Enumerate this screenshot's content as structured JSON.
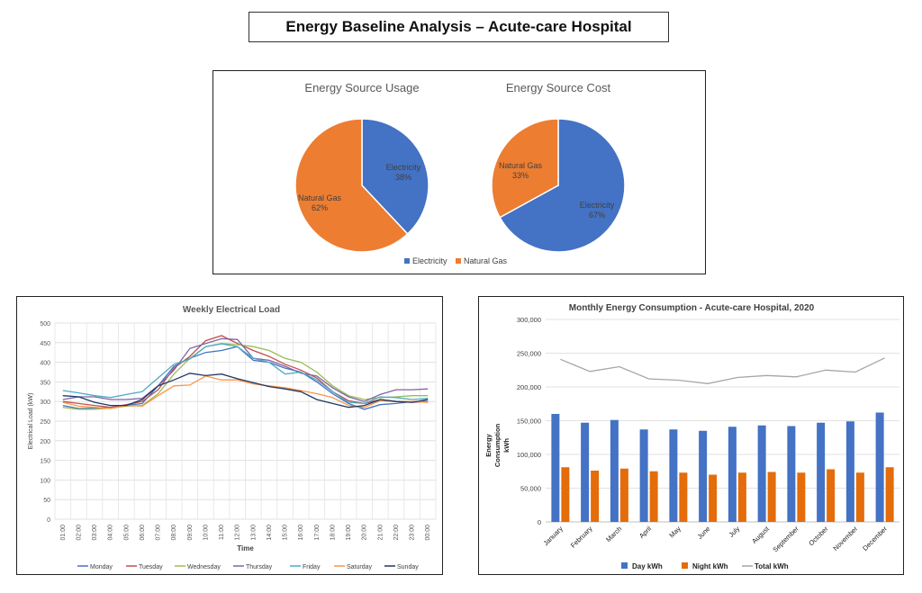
{
  "page": {
    "title": "Energy Baseline Analysis – Acute-care Hospital"
  },
  "colors": {
    "electricity": "#4472C4",
    "natural_gas": "#ED7D31",
    "monday": "#4472C4",
    "tuesday": "#C0504D",
    "wednesday": "#9BBB59",
    "thursday": "#8064A2",
    "friday": "#4BACC6",
    "saturday": "#F79646",
    "sunday": "#1F3864",
    "day_kwh": "#4472C4",
    "night_kwh": "#E46C0A",
    "total_kwh": "#A6A6A6"
  },
  "chart_data": [
    {
      "type": "pie",
      "title": "Energy Source Usage",
      "labels": [
        "Electricity",
        "Natural Gas"
      ],
      "values": [
        38,
        62
      ],
      "value_labels": [
        "38%",
        "62%"
      ]
    },
    {
      "type": "pie",
      "title": "Energy Source Cost",
      "labels": [
        "Electricity",
        "Natural Gas"
      ],
      "values": [
        67,
        33
      ],
      "value_labels": [
        "67%",
        "33%"
      ],
      "legend": [
        "Electricity",
        "Natural Gas"
      ]
    },
    {
      "type": "line",
      "title": "Weekly Electrical Load",
      "xlabel": "Time",
      "ylabel": "Electrical Load (kW)",
      "ylim": [
        0,
        500
      ],
      "yticks": [
        "0",
        "50",
        "100",
        "150",
        "200",
        "250",
        "300",
        "350",
        "400",
        "450",
        "500"
      ],
      "x": [
        "01:00",
        "02:00",
        "03:00",
        "04:00",
        "05:00",
        "06:00",
        "07:00",
        "08:00",
        "09:00",
        "10:00",
        "11:00",
        "12:00",
        "13:00",
        "14:00",
        "15:00",
        "16:00",
        "17:00",
        "18:00",
        "19:00",
        "20:00",
        "21:00",
        "22:00",
        "23:00",
        "00:00"
      ],
      "series": [
        {
          "name": "Monday",
          "values": [
            290,
            282,
            283,
            285,
            290,
            295,
            340,
            390,
            410,
            425,
            430,
            440,
            405,
            400,
            385,
            375,
            350,
            320,
            295,
            280,
            292,
            295,
            300,
            300
          ]
        },
        {
          "name": "Tuesday",
          "values": [
            300,
            295,
            290,
            285,
            292,
            300,
            330,
            385,
            415,
            455,
            468,
            448,
            430,
            415,
            395,
            380,
            360,
            325,
            302,
            295,
            305,
            300,
            298,
            300
          ]
        },
        {
          "name": "Wednesday",
          "values": [
            285,
            280,
            280,
            283,
            288,
            290,
            320,
            370,
            410,
            440,
            448,
            445,
            440,
            430,
            410,
            400,
            375,
            340,
            315,
            305,
            310,
            312,
            315,
            315
          ]
        },
        {
          "name": "Thursday",
          "values": [
            305,
            312,
            312,
            305,
            305,
            308,
            340,
            380,
            435,
            448,
            460,
            458,
            410,
            405,
            390,
            372,
            365,
            335,
            312,
            300,
            318,
            330,
            330,
            332
          ]
        },
        {
          "name": "Friday",
          "values": [
            328,
            322,
            315,
            310,
            318,
            325,
            360,
            395,
            408,
            440,
            447,
            440,
            410,
            400,
            370,
            375,
            355,
            325,
            298,
            295,
            312,
            310,
            305,
            308
          ]
        },
        {
          "name": "Saturday",
          "values": [
            298,
            288,
            285,
            282,
            290,
            288,
            315,
            340,
            342,
            365,
            355,
            355,
            345,
            340,
            335,
            328,
            320,
            310,
            290,
            285,
            302,
            300,
            300,
            298
          ]
        },
        {
          "name": "Sunday",
          "values": [
            315,
            312,
            298,
            290,
            290,
            305,
            340,
            355,
            372,
            366,
            370,
            358,
            348,
            338,
            332,
            325,
            305,
            295,
            285,
            290,
            305,
            300,
            298,
            305
          ]
        }
      ]
    },
    {
      "type": "bar",
      "title": "Monthly Energy Consumption - Acute-care Hospital, 2020",
      "ylabel": "Energy Consumption kWh",
      "ylabel_lines": [
        "Energy",
        "Consumption",
        "kWh"
      ],
      "ylim": [
        0,
        300000
      ],
      "yticks": [
        "0",
        "50,000",
        "100,000",
        "150,000",
        "200,000",
        "250,000",
        "300,000"
      ],
      "categories": [
        "January",
        "February",
        "March",
        "April",
        "May",
        "June",
        "July",
        "August",
        "September",
        "October",
        "November",
        "December"
      ],
      "series": [
        {
          "name": "Day kWh",
          "type": "bar",
          "values": [
            160000,
            147000,
            151000,
            137000,
            137000,
            135000,
            141000,
            143000,
            142000,
            147000,
            149000,
            162000
          ]
        },
        {
          "name": "Night kWh",
          "type": "bar",
          "values": [
            81000,
            76000,
            79000,
            75000,
            73000,
            70000,
            73000,
            74000,
            73000,
            78000,
            73000,
            81000
          ]
        },
        {
          "name": "Total kWh",
          "type": "line",
          "values": [
            241000,
            223000,
            230000,
            212000,
            210000,
            205000,
            214000,
            217000,
            215000,
            225000,
            222000,
            243000
          ]
        }
      ]
    }
  ]
}
